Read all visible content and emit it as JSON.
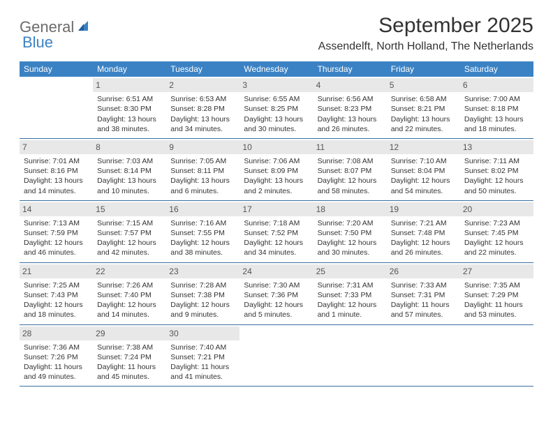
{
  "logo": {
    "text1": "General",
    "text2": "Blue"
  },
  "title": "September 2025",
  "location": "Assendelft, North Holland, The Netherlands",
  "colors": {
    "header_blue": "#3b82c4",
    "daynum_bg": "#e8e8e8",
    "rule": "#3b6fa0",
    "text": "#333333",
    "logo_gray": "#6b6b6b"
  },
  "weekdays": [
    "Sunday",
    "Monday",
    "Tuesday",
    "Wednesday",
    "Thursday",
    "Friday",
    "Saturday"
  ],
  "weeks": [
    [
      {
        "empty": true
      },
      {
        "day": "1",
        "sunrise": "Sunrise: 6:51 AM",
        "sunset": "Sunset: 8:30 PM",
        "daylight": "Daylight: 13 hours and 38 minutes."
      },
      {
        "day": "2",
        "sunrise": "Sunrise: 6:53 AM",
        "sunset": "Sunset: 8:28 PM",
        "daylight": "Daylight: 13 hours and 34 minutes."
      },
      {
        "day": "3",
        "sunrise": "Sunrise: 6:55 AM",
        "sunset": "Sunset: 8:25 PM",
        "daylight": "Daylight: 13 hours and 30 minutes."
      },
      {
        "day": "4",
        "sunrise": "Sunrise: 6:56 AM",
        "sunset": "Sunset: 8:23 PM",
        "daylight": "Daylight: 13 hours and 26 minutes."
      },
      {
        "day": "5",
        "sunrise": "Sunrise: 6:58 AM",
        "sunset": "Sunset: 8:21 PM",
        "daylight": "Daylight: 13 hours and 22 minutes."
      },
      {
        "day": "6",
        "sunrise": "Sunrise: 7:00 AM",
        "sunset": "Sunset: 8:18 PM",
        "daylight": "Daylight: 13 hours and 18 minutes."
      }
    ],
    [
      {
        "day": "7",
        "sunrise": "Sunrise: 7:01 AM",
        "sunset": "Sunset: 8:16 PM",
        "daylight": "Daylight: 13 hours and 14 minutes."
      },
      {
        "day": "8",
        "sunrise": "Sunrise: 7:03 AM",
        "sunset": "Sunset: 8:14 PM",
        "daylight": "Daylight: 13 hours and 10 minutes."
      },
      {
        "day": "9",
        "sunrise": "Sunrise: 7:05 AM",
        "sunset": "Sunset: 8:11 PM",
        "daylight": "Daylight: 13 hours and 6 minutes."
      },
      {
        "day": "10",
        "sunrise": "Sunrise: 7:06 AM",
        "sunset": "Sunset: 8:09 PM",
        "daylight": "Daylight: 13 hours and 2 minutes."
      },
      {
        "day": "11",
        "sunrise": "Sunrise: 7:08 AM",
        "sunset": "Sunset: 8:07 PM",
        "daylight": "Daylight: 12 hours and 58 minutes."
      },
      {
        "day": "12",
        "sunrise": "Sunrise: 7:10 AM",
        "sunset": "Sunset: 8:04 PM",
        "daylight": "Daylight: 12 hours and 54 minutes."
      },
      {
        "day": "13",
        "sunrise": "Sunrise: 7:11 AM",
        "sunset": "Sunset: 8:02 PM",
        "daylight": "Daylight: 12 hours and 50 minutes."
      }
    ],
    [
      {
        "day": "14",
        "sunrise": "Sunrise: 7:13 AM",
        "sunset": "Sunset: 7:59 PM",
        "daylight": "Daylight: 12 hours and 46 minutes."
      },
      {
        "day": "15",
        "sunrise": "Sunrise: 7:15 AM",
        "sunset": "Sunset: 7:57 PM",
        "daylight": "Daylight: 12 hours and 42 minutes."
      },
      {
        "day": "16",
        "sunrise": "Sunrise: 7:16 AM",
        "sunset": "Sunset: 7:55 PM",
        "daylight": "Daylight: 12 hours and 38 minutes."
      },
      {
        "day": "17",
        "sunrise": "Sunrise: 7:18 AM",
        "sunset": "Sunset: 7:52 PM",
        "daylight": "Daylight: 12 hours and 34 minutes."
      },
      {
        "day": "18",
        "sunrise": "Sunrise: 7:20 AM",
        "sunset": "Sunset: 7:50 PM",
        "daylight": "Daylight: 12 hours and 30 minutes."
      },
      {
        "day": "19",
        "sunrise": "Sunrise: 7:21 AM",
        "sunset": "Sunset: 7:48 PM",
        "daylight": "Daylight: 12 hours and 26 minutes."
      },
      {
        "day": "20",
        "sunrise": "Sunrise: 7:23 AM",
        "sunset": "Sunset: 7:45 PM",
        "daylight": "Daylight: 12 hours and 22 minutes."
      }
    ],
    [
      {
        "day": "21",
        "sunrise": "Sunrise: 7:25 AM",
        "sunset": "Sunset: 7:43 PM",
        "daylight": "Daylight: 12 hours and 18 minutes."
      },
      {
        "day": "22",
        "sunrise": "Sunrise: 7:26 AM",
        "sunset": "Sunset: 7:40 PM",
        "daylight": "Daylight: 12 hours and 14 minutes."
      },
      {
        "day": "23",
        "sunrise": "Sunrise: 7:28 AM",
        "sunset": "Sunset: 7:38 PM",
        "daylight": "Daylight: 12 hours and 9 minutes."
      },
      {
        "day": "24",
        "sunrise": "Sunrise: 7:30 AM",
        "sunset": "Sunset: 7:36 PM",
        "daylight": "Daylight: 12 hours and 5 minutes."
      },
      {
        "day": "25",
        "sunrise": "Sunrise: 7:31 AM",
        "sunset": "Sunset: 7:33 PM",
        "daylight": "Daylight: 12 hours and 1 minute."
      },
      {
        "day": "26",
        "sunrise": "Sunrise: 7:33 AM",
        "sunset": "Sunset: 7:31 PM",
        "daylight": "Daylight: 11 hours and 57 minutes."
      },
      {
        "day": "27",
        "sunrise": "Sunrise: 7:35 AM",
        "sunset": "Sunset: 7:29 PM",
        "daylight": "Daylight: 11 hours and 53 minutes."
      }
    ],
    [
      {
        "day": "28",
        "sunrise": "Sunrise: 7:36 AM",
        "sunset": "Sunset: 7:26 PM",
        "daylight": "Daylight: 11 hours and 49 minutes."
      },
      {
        "day": "29",
        "sunrise": "Sunrise: 7:38 AM",
        "sunset": "Sunset: 7:24 PM",
        "daylight": "Daylight: 11 hours and 45 minutes."
      },
      {
        "day": "30",
        "sunrise": "Sunrise: 7:40 AM",
        "sunset": "Sunset: 7:21 PM",
        "daylight": "Daylight: 11 hours and 41 minutes."
      },
      {
        "empty": true
      },
      {
        "empty": true
      },
      {
        "empty": true
      },
      {
        "empty": true
      }
    ]
  ]
}
